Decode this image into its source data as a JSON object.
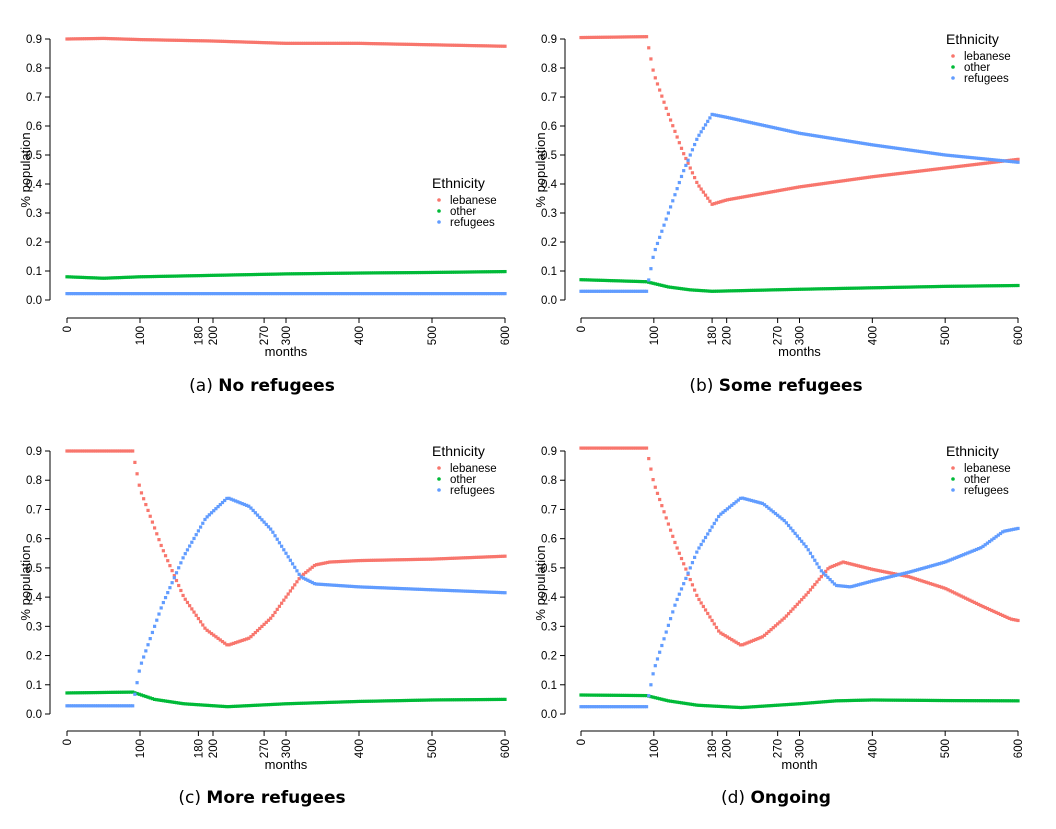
{
  "colors": {
    "lebanese": "#F8766D",
    "other": "#00BA38",
    "refugees": "#619CFF"
  },
  "chart_data": [
    {
      "type": "scatter",
      "caption_prefix": "(a)",
      "caption": "No refugees",
      "xlabel": "months",
      "ylabel": "% population",
      "xlim": [
        0,
        600
      ],
      "ylim": [
        0,
        0.9
      ],
      "xticks": [
        "0",
        "100",
        "180",
        "200",
        "270",
        "300",
        "400",
        "500",
        "600"
      ],
      "yticks": [
        "0.0",
        "0.1",
        "0.2",
        "0.3",
        "0.4",
        "0.5",
        "0.6",
        "0.7",
        "0.8",
        "0.9"
      ],
      "legend": {
        "title": "Ethnicity",
        "position": "center-right"
      },
      "series": [
        {
          "name": "lebanese",
          "points": [
            [
              0,
              0.9
            ],
            [
              50,
              0.902
            ],
            [
              100,
              0.898
            ],
            [
              200,
              0.893
            ],
            [
              300,
              0.885
            ],
            [
              400,
              0.885
            ],
            [
              500,
              0.88
            ],
            [
              600,
              0.875
            ]
          ]
        },
        {
          "name": "other",
          "points": [
            [
              0,
              0.08
            ],
            [
              50,
              0.075
            ],
            [
              100,
              0.08
            ],
            [
              200,
              0.085
            ],
            [
              300,
              0.09
            ],
            [
              400,
              0.093
            ],
            [
              500,
              0.095
            ],
            [
              600,
              0.098
            ]
          ]
        },
        {
          "name": "refugees",
          "points": [
            [
              0,
              0.022
            ],
            [
              600,
              0.022
            ]
          ]
        }
      ]
    },
    {
      "type": "scatter",
      "caption_prefix": "(b)",
      "caption": "Some refugees",
      "xlabel": "months",
      "ylabel": "% population",
      "xlim": [
        0,
        600
      ],
      "ylim": [
        0,
        0.9
      ],
      "xticks": [
        "0",
        "100",
        "180",
        "200",
        "270",
        "300",
        "400",
        "500",
        "600"
      ],
      "yticks": [
        "0.0",
        "0.1",
        "0.2",
        "0.3",
        "0.4",
        "0.5",
        "0.6",
        "0.7",
        "0.8",
        "0.9"
      ],
      "legend": {
        "title": "Ethnicity",
        "position": "top-right"
      },
      "series": [
        {
          "name": "lebanese",
          "points": [
            [
              0,
              0.905
            ],
            [
              90,
              0.908
            ],
            [
              100,
              0.78
            ],
            [
              120,
              0.64
            ],
            [
              140,
              0.51
            ],
            [
              160,
              0.4
            ],
            [
              180,
              0.33
            ],
            [
              200,
              0.345
            ],
            [
              300,
              0.39
            ],
            [
              400,
              0.425
            ],
            [
              500,
              0.455
            ],
            [
              600,
              0.485
            ]
          ]
        },
        {
          "name": "other",
          "points": [
            [
              0,
              0.07
            ],
            [
              90,
              0.063
            ],
            [
              120,
              0.045
            ],
            [
              150,
              0.035
            ],
            [
              180,
              0.03
            ],
            [
              300,
              0.037
            ],
            [
              400,
              0.042
            ],
            [
              500,
              0.047
            ],
            [
              600,
              0.05
            ]
          ]
        },
        {
          "name": "refugees",
          "points": [
            [
              0,
              0.03
            ],
            [
              90,
              0.03
            ],
            [
              100,
              0.16
            ],
            [
              120,
              0.3
            ],
            [
              140,
              0.44
            ],
            [
              160,
              0.56
            ],
            [
              180,
              0.64
            ],
            [
              200,
              0.63
            ],
            [
              300,
              0.575
            ],
            [
              400,
              0.535
            ],
            [
              500,
              0.5
            ],
            [
              600,
              0.475
            ]
          ]
        }
      ]
    },
    {
      "type": "scatter",
      "caption_prefix": "(c)",
      "caption": "More refugees",
      "xlabel": "months",
      "ylabel": "% population",
      "xlim": [
        0,
        600
      ],
      "ylim": [
        0,
        0.9
      ],
      "xticks": [
        "0",
        "100",
        "180",
        "200",
        "270",
        "300",
        "400",
        "500",
        "600"
      ],
      "yticks": [
        "0.0",
        "0.1",
        "0.2",
        "0.3",
        "0.4",
        "0.5",
        "0.6",
        "0.7",
        "0.8",
        "0.9"
      ],
      "legend": {
        "title": "Ethnicity",
        "position": "top-right"
      },
      "series": [
        {
          "name": "lebanese",
          "points": [
            [
              0,
              0.9
            ],
            [
              90,
              0.9
            ],
            [
              100,
              0.77
            ],
            [
              130,
              0.57
            ],
            [
              160,
              0.4
            ],
            [
              190,
              0.29
            ],
            [
              220,
              0.235
            ],
            [
              250,
              0.26
            ],
            [
              280,
              0.33
            ],
            [
              300,
              0.4
            ],
            [
              320,
              0.47
            ],
            [
              340,
              0.51
            ],
            [
              360,
              0.52
            ],
            [
              400,
              0.525
            ],
            [
              500,
              0.53
            ],
            [
              600,
              0.54
            ]
          ]
        },
        {
          "name": "other",
          "points": [
            [
              0,
              0.072
            ],
            [
              90,
              0.075
            ],
            [
              120,
              0.05
            ],
            [
              160,
              0.035
            ],
            [
              220,
              0.025
            ],
            [
              300,
              0.035
            ],
            [
              400,
              0.043
            ],
            [
              500,
              0.048
            ],
            [
              600,
              0.05
            ]
          ]
        },
        {
          "name": "refugees",
          "points": [
            [
              0,
              0.028
            ],
            [
              90,
              0.028
            ],
            [
              100,
              0.16
            ],
            [
              130,
              0.37
            ],
            [
              160,
              0.54
            ],
            [
              190,
              0.67
            ],
            [
              220,
              0.74
            ],
            [
              250,
              0.71
            ],
            [
              280,
              0.63
            ],
            [
              300,
              0.55
            ],
            [
              320,
              0.47
            ],
            [
              340,
              0.445
            ],
            [
              400,
              0.435
            ],
            [
              500,
              0.425
            ],
            [
              600,
              0.415
            ]
          ]
        }
      ]
    },
    {
      "type": "scatter",
      "caption_prefix": "(d)",
      "caption": "Ongoing",
      "xlabel": "month",
      "ylabel": "% population",
      "xlim": [
        0,
        600
      ],
      "ylim": [
        0,
        0.9
      ],
      "xticks": [
        "0",
        "100",
        "180",
        "200",
        "270",
        "300",
        "400",
        "500",
        "600"
      ],
      "yticks": [
        "0.0",
        "0.1",
        "0.2",
        "0.3",
        "0.4",
        "0.5",
        "0.6",
        "0.7",
        "0.8",
        "0.9"
      ],
      "legend": {
        "title": "Ethnicity",
        "position": "top-right"
      },
      "series": [
        {
          "name": "lebanese",
          "points": [
            [
              0,
              0.91
            ],
            [
              90,
              0.91
            ],
            [
              100,
              0.79
            ],
            [
              130,
              0.58
            ],
            [
              160,
              0.4
            ],
            [
              190,
              0.28
            ],
            [
              220,
              0.235
            ],
            [
              250,
              0.265
            ],
            [
              280,
              0.33
            ],
            [
              310,
              0.41
            ],
            [
              340,
              0.5
            ],
            [
              360,
              0.52
            ],
            [
              400,
              0.495
            ],
            [
              450,
              0.47
            ],
            [
              500,
              0.43
            ],
            [
              550,
              0.37
            ],
            [
              590,
              0.325
            ],
            [
              600,
              0.32
            ]
          ]
        },
        {
          "name": "other",
          "points": [
            [
              0,
              0.065
            ],
            [
              90,
              0.063
            ],
            [
              120,
              0.045
            ],
            [
              160,
              0.03
            ],
            [
              220,
              0.022
            ],
            [
              300,
              0.035
            ],
            [
              350,
              0.045
            ],
            [
              400,
              0.048
            ],
            [
              500,
              0.046
            ],
            [
              600,
              0.045
            ]
          ]
        },
        {
          "name": "refugees",
          "points": [
            [
              0,
              0.025
            ],
            [
              90,
              0.025
            ],
            [
              100,
              0.15
            ],
            [
              130,
              0.38
            ],
            [
              160,
              0.56
            ],
            [
              190,
              0.68
            ],
            [
              220,
              0.74
            ],
            [
              250,
              0.72
            ],
            [
              280,
              0.66
            ],
            [
              310,
              0.57
            ],
            [
              330,
              0.49
            ],
            [
              350,
              0.44
            ],
            [
              370,
              0.435
            ],
            [
              400,
              0.455
            ],
            [
              450,
              0.485
            ],
            [
              500,
              0.52
            ],
            [
              550,
              0.57
            ],
            [
              580,
              0.625
            ],
            [
              600,
              0.635
            ]
          ]
        }
      ]
    }
  ]
}
